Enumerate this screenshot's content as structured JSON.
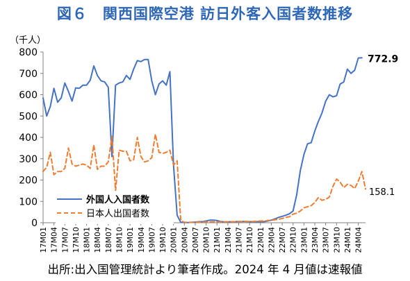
{
  "title": "図６　関西国際空港 訪日外客入国者数推移",
  "source": "出所:出入国管理統計より筆者作成。2024 年 4 月値は速報値",
  "chart_data": {
    "type": "line",
    "unit_label": "（千人）",
    "ylim": [
      0,
      800
    ],
    "yticks": [
      0,
      100,
      200,
      300,
      400,
      500,
      600,
      700,
      800
    ],
    "grid": false,
    "legend_position": "bottom-left",
    "x_tick_labels": [
      "17M01",
      "17M04",
      "17M07",
      "17M10",
      "18M01",
      "18M04",
      "18M07",
      "18M10",
      "19M01",
      "19M04",
      "19M07",
      "19M10",
      "20M01",
      "20M04",
      "20M07",
      "20M10",
      "21M01",
      "21M04",
      "21M07",
      "21M10",
      "22M01",
      "22M04",
      "22M07",
      "22M10",
      "23M01",
      "23M04",
      "23M07",
      "23M10",
      "24M01",
      "24M04"
    ],
    "series": [
      {
        "name": "外国人入国者数",
        "color": "#4472c4",
        "style": "solid",
        "end_label": "772.9",
        "values": [
          585,
          500,
          545,
          630,
          565,
          585,
          655,
          615,
          570,
          632,
          630,
          645,
          645,
          668,
          735,
          690,
          665,
          660,
          635,
          310,
          645,
          655,
          660,
          690,
          672,
          720,
          760,
          755,
          765,
          765,
          665,
          600,
          650,
          665,
          645,
          708,
          270,
          35,
          2,
          1,
          1,
          2,
          3,
          5,
          5,
          8,
          12,
          12,
          10,
          6,
          4,
          4,
          5,
          5,
          6,
          6,
          6,
          5,
          5,
          5,
          5,
          5,
          8,
          12,
          18,
          25,
          30,
          35,
          42,
          55,
          130,
          245,
          320,
          370,
          375,
          430,
          475,
          515,
          570,
          600,
          590,
          595,
          650,
          660,
          720,
          700,
          715,
          772,
          772.9
        ]
      },
      {
        "name": "日本人出国者数",
        "color": "#ed7d31",
        "style": "dashed",
        "end_label": "158.1",
        "values": [
          240,
          260,
          330,
          225,
          240,
          240,
          255,
          350,
          275,
          265,
          270,
          275,
          270,
          255,
          365,
          250,
          265,
          265,
          285,
          405,
          150,
          340,
          335,
          335,
          290,
          295,
          400,
          310,
          285,
          290,
          305,
          415,
          330,
          325,
          330,
          340,
          270,
          290,
          10,
          2,
          2,
          2,
          3,
          3,
          3,
          4,
          4,
          4,
          4,
          4,
          4,
          4,
          5,
          5,
          5,
          5,
          6,
          6,
          6,
          7,
          8,
          8,
          10,
          12,
          14,
          16,
          20,
          25,
          28,
          40,
          45,
          55,
          70,
          75,
          80,
          95,
          118,
          105,
          110,
          120,
          170,
          205,
          190,
          165,
          180,
          175,
          160,
          195,
          240,
          158.1
        ]
      }
    ]
  }
}
